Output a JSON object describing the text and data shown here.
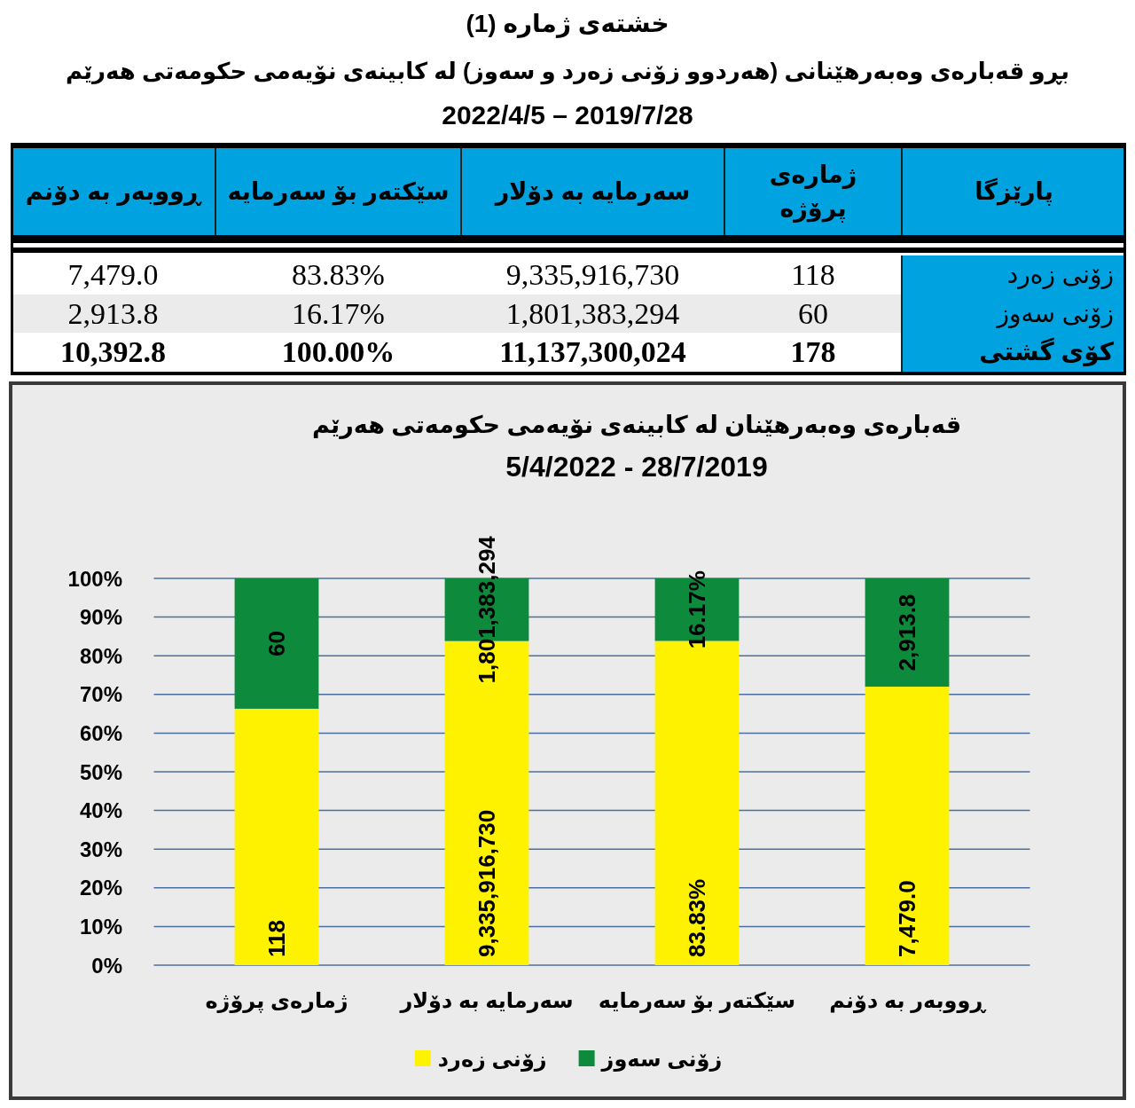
{
  "chart_data": [
    {
      "type": "other",
      "title": "خشتەی ژمارە (1)",
      "subtitle": "بڕو قەبارەی وەبەرهێنانی (هەردوو زۆنی زەرد و سەوز) لە کابینەی نۆیەمی حکومەتی هەرێم",
      "annotations": [
        "2022/4/5 – 2019/7/28",
        "پارێزگا",
        "ژمارەی پرۆژە",
        "سەرمایە بە دۆلار",
        "سێکتەر بۆ سەرمایە",
        "ڕووبەر بە دۆنم",
        "زۆنی زەرد",
        "118",
        "9,335,916,730",
        "83.83%",
        "7,479.0",
        "زۆنی سەوز",
        "60",
        "1,801,383,294",
        "16.17%",
        "2,913.8",
        "کۆی گشتی",
        "178",
        "11,137,300,024",
        "100.00%",
        "10,392.8"
      ]
    },
    {
      "type": "bar",
      "stacked": true,
      "title": "قەبارەی وەبەرهێنان لە کابینەی نۆیەمی حکومەتی هەرێم",
      "subtitle": "5/4/2022 - 28/7/2019",
      "categories": [
        "ژمارەی پرۆژە",
        "سەرمایە بە دۆلار",
        "سێکتەر بۆ سەرمایە",
        "ڕووبەر بە دۆنم"
      ],
      "series": [
        {
          "name": "زۆنی زەرد",
          "color": "#fff200",
          "values": [
            66.3,
            83.8,
            83.83,
            72.0
          ],
          "value_labels": [
            null,
            null,
            "83.83%",
            null
          ]
        },
        {
          "name": "زۆنی سەوز",
          "color": "#0e8a3c",
          "values": [
            33.7,
            16.2,
            16.17,
            28.0
          ],
          "value_labels": [
            null,
            null,
            "16.17%",
            null
          ]
        }
      ],
      "ylim": [
        0,
        100
      ],
      "yticks": [
        {
          "value": 0,
          "label": "0%"
        },
        {
          "value": 10,
          "label": "10%"
        },
        {
          "value": 20,
          "label": "20%"
        },
        {
          "value": 30,
          "label": "30%"
        },
        {
          "value": 40,
          "label": "40%"
        },
        {
          "value": 50,
          "label": "50%"
        },
        {
          "value": 60,
          "label": "60%"
        },
        {
          "value": 70,
          "label": "70%"
        },
        {
          "value": 80,
          "label": "80%"
        },
        {
          "value": 90,
          "label": "90%"
        },
        {
          "value": 100,
          "label": "100%"
        }
      ],
      "grid": "y",
      "legend": "bottom",
      "annotations": [
        {
          "text": "118",
          "x": "ژمارەی پرۆژە",
          "y": 0
        },
        {
          "text": "60",
          "x": "ژمارەی پرۆژە",
          "y": 100
        },
        {
          "text": "9,335,916,730",
          "x": "سەرمایە بە دۆلار",
          "y": 0
        },
        {
          "text": "1,801,383,294",
          "x": "سەرمایە بە دۆلار",
          "y": 100
        },
        {
          "text": "7,479.0",
          "x": "ڕووبەر بە دۆنم",
          "y": 0
        },
        {
          "text": "2,913.8",
          "x": "ڕووبەر بە دۆنم",
          "y": 100
        }
      ]
    }
  ]
}
